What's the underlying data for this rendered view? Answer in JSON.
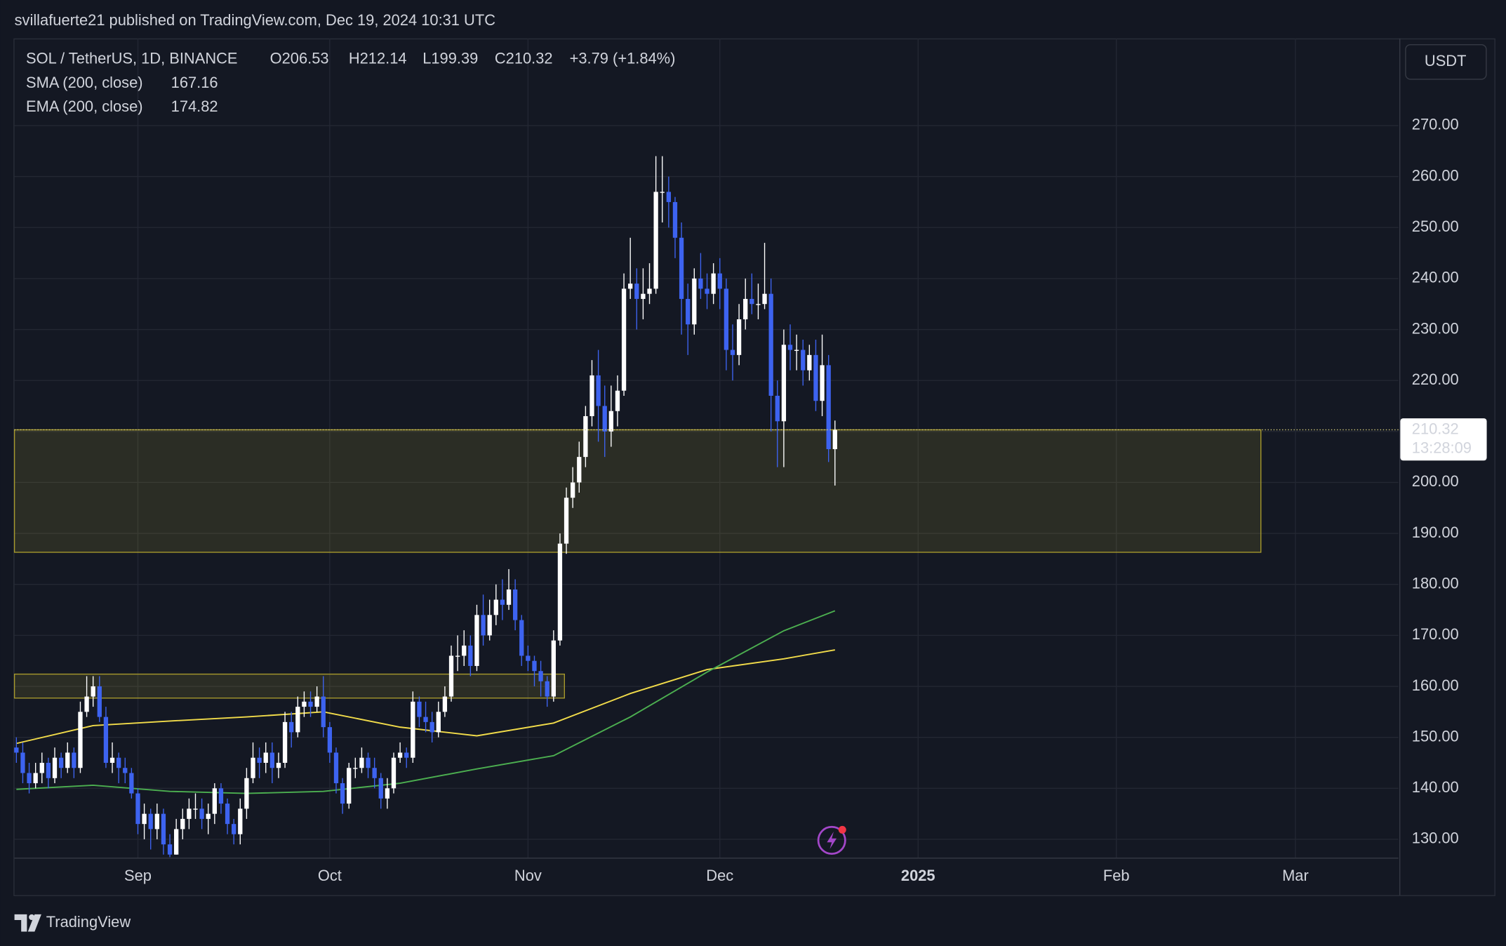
{
  "chart_data": {
    "type": "candlestick",
    "publisher": "svillafuerte21 published on TradingView.com, Dec 19, 2024 10:31 UTC",
    "title": "SOL / TetherUS, 1D, BINANCE",
    "ohlc_labels": [
      "O206.53",
      "H212.14",
      "L199.39",
      "C210.32"
    ],
    "change": "+3.79 (+1.84%)",
    "currency": "USDT",
    "countdown": "13:28:09",
    "brand": "TradingView",
    "up_color": "#ffffff",
    "down_color": "#3d63f0",
    "grid": true,
    "xlim": [
      -0.3,
      216.1
    ],
    "ylim": [
      126.4,
      287.1
    ],
    "xticks": [
      {
        "value": 19,
        "label": "Sep"
      },
      {
        "value": 49,
        "label": "Oct"
      },
      {
        "value": 80,
        "label": "Nov"
      },
      {
        "value": 110,
        "label": "Dec"
      },
      {
        "value": 141,
        "label": "2025"
      },
      {
        "value": 172,
        "label": "Feb"
      },
      {
        "value": 200,
        "label": "Mar"
      }
    ],
    "yticks": [
      {
        "value": 130,
        "label": "130.00"
      },
      {
        "value": 140,
        "label": "140.00"
      },
      {
        "value": 150,
        "label": "150.00"
      },
      {
        "value": 160,
        "label": "160.00"
      },
      {
        "value": 170,
        "label": "170.00"
      },
      {
        "value": 180,
        "label": "180.00"
      },
      {
        "value": 190,
        "label": "190.00"
      },
      {
        "value": 200,
        "label": "200.00"
      },
      {
        "value": 210,
        "label": "210.00"
      },
      {
        "value": 220,
        "label": "220.00"
      },
      {
        "value": 230,
        "label": "230.00"
      },
      {
        "value": 240,
        "label": "240.00"
      },
      {
        "value": 250,
        "label": "250.00"
      },
      {
        "value": 260,
        "label": "260.00"
      },
      {
        "value": 270,
        "label": "270.00"
      }
    ],
    "candles": {
      "x": [
        0,
        1,
        2,
        3,
        4,
        5,
        6,
        7,
        8,
        9,
        10,
        11,
        12,
        13,
        14,
        15,
        16,
        17,
        18,
        19,
        20,
        21,
        22,
        23,
        24,
        25,
        26,
        27,
        28,
        29,
        30,
        31,
        32,
        33,
        34,
        35,
        36,
        37,
        38,
        39,
        40,
        41,
        42,
        43,
        44,
        45,
        46,
        47,
        48,
        49,
        50,
        51,
        52,
        53,
        54,
        55,
        56,
        57,
        58,
        59,
        60,
        61,
        62,
        63,
        64,
        65,
        66,
        67,
        68,
        69,
        70,
        71,
        72,
        73,
        74,
        75,
        76,
        77,
        78,
        79,
        80,
        81,
        82,
        83,
        84,
        85,
        86,
        87,
        88,
        89,
        90,
        91,
        92,
        93,
        94,
        95,
        96,
        97,
        98,
        99,
        100,
        101,
        102,
        103,
        104,
        105,
        106,
        107,
        108,
        109,
        110,
        111,
        112,
        113,
        114,
        115,
        116,
        117,
        118,
        119,
        120,
        121,
        122,
        123,
        124,
        125,
        126,
        127,
        128
      ],
      "open": [
        148,
        147,
        143,
        141,
        143,
        145,
        142,
        146,
        144,
        147,
        144,
        155,
        158,
        160,
        154,
        145,
        146,
        144,
        143,
        139,
        133,
        135,
        132,
        135,
        129,
        127,
        132,
        134,
        136,
        136,
        134,
        135,
        140,
        137,
        133,
        131,
        136,
        142,
        146,
        145,
        147,
        144,
        145,
        153,
        151,
        156,
        157,
        156,
        158,
        152,
        147,
        141,
        137,
        144,
        144,
        146,
        144,
        142,
        138,
        140,
        146,
        147,
        146,
        157,
        154,
        153,
        151,
        155,
        158,
        166,
        166,
        168,
        164,
        174,
        170,
        174,
        177,
        176,
        179,
        173,
        166,
        165,
        163,
        161,
        158,
        169,
        188,
        197,
        200,
        205,
        213,
        221,
        215,
        210,
        214,
        218,
        238,
        239,
        236,
        237,
        238,
        257,
        257,
        255,
        248,
        236,
        231,
        240,
        238,
        237,
        241,
        238,
        226,
        225,
        232,
        236,
        235,
        235,
        237,
        217,
        212,
        227,
        226,
        226,
        222,
        225,
        216,
        223,
        206.53
      ],
      "high": [
        150,
        149,
        145,
        145,
        147,
        146,
        148,
        147,
        149,
        148,
        157,
        162,
        162,
        162,
        156,
        149,
        147,
        146,
        144,
        140,
        137,
        136,
        137,
        136,
        131,
        134,
        136,
        138,
        139,
        138,
        137,
        141,
        141,
        138,
        134,
        138,
        144,
        149,
        148,
        149,
        149,
        147,
        155,
        155,
        158,
        159,
        159,
        160,
        162,
        153,
        148,
        142,
        145,
        146,
        148,
        147,
        146,
        143,
        142,
        147,
        149,
        148,
        159,
        158,
        157,
        155,
        157,
        160,
        168,
        170,
        171,
        170,
        176,
        178,
        177,
        180,
        181,
        183,
        181,
        174,
        168,
        166,
        165,
        162,
        171,
        190,
        199,
        203,
        208,
        215,
        224,
        226,
        219,
        219,
        221,
        241,
        248,
        242,
        242,
        243,
        264,
        264,
        260,
        256,
        251,
        239,
        242,
        245,
        241,
        243,
        244,
        240,
        231,
        235,
        240,
        241,
        239,
        247,
        240,
        220,
        230,
        231,
        229,
        228,
        227,
        228,
        229,
        225,
        212.14
      ],
      "low": [
        145,
        141,
        139,
        140,
        141,
        140,
        141,
        142,
        143,
        142,
        143,
        154,
        156,
        153,
        144,
        143,
        141,
        141,
        138,
        131,
        130,
        128,
        130,
        127,
        126.5,
        127,
        130,
        132,
        134,
        132,
        131,
        133,
        135,
        131,
        129,
        129,
        134,
        141,
        142,
        143,
        141,
        142,
        144,
        148,
        150,
        154,
        154,
        155,
        150,
        145,
        139,
        135,
        136,
        142,
        143,
        142,
        140,
        136,
        136,
        139,
        145,
        144,
        145,
        152,
        151,
        149,
        150,
        154,
        157,
        163,
        164,
        162,
        163,
        168,
        169,
        172,
        173,
        175,
        171,
        164,
        163,
        160,
        158,
        156,
        157,
        168,
        186,
        195,
        198,
        203,
        211,
        208,
        205,
        207,
        211,
        217,
        236,
        230,
        232,
        235,
        237,
        251,
        250,
        244,
        229,
        225,
        229,
        236,
        234,
        235,
        234,
        222,
        220,
        223,
        230,
        233,
        232,
        234,
        210,
        203,
        203,
        222,
        222,
        219,
        220,
        214,
        213,
        204,
        199.39
      ],
      "close": [
        147,
        143,
        141,
        143,
        145,
        142,
        146,
        144,
        147,
        144,
        155,
        158,
        160,
        154,
        145,
        146,
        144,
        143,
        139,
        133,
        135,
        132,
        135,
        129,
        127,
        132,
        134,
        136,
        136,
        134,
        135,
        140,
        137,
        133,
        131,
        136,
        142,
        146,
        145,
        147,
        144,
        145,
        153,
        151,
        156,
        157,
        156,
        158,
        152,
        147,
        141,
        137,
        144,
        144,
        146,
        144,
        142,
        138,
        140,
        146,
        147,
        146,
        157,
        154,
        153,
        151,
        155,
        158,
        166,
        166,
        168,
        164,
        174,
        170,
        174,
        177,
        176,
        179,
        173,
        166,
        165,
        163,
        161,
        158,
        169,
        188,
        197,
        200,
        205,
        213,
        221,
        215,
        210,
        214,
        218,
        238,
        239,
        236,
        237,
        238,
        257,
        257,
        255,
        248,
        236,
        231,
        240,
        238,
        237,
        241,
        238,
        226,
        225,
        232,
        236,
        235,
        235,
        237,
        217,
        212,
        227,
        226,
        226,
        222,
        225,
        216,
        223,
        206.53,
        210.32
      ]
    },
    "indicators": [
      {
        "name": "SMA (200, close)",
        "color": "#f2dc4a",
        "x": [
          0,
          12,
          24,
          36,
          48,
          60,
          72,
          84,
          96,
          108,
          120,
          128
        ],
        "values": [
          148.8,
          152.3,
          153.2,
          154,
          155,
          152,
          150.3,
          152.8,
          158.6,
          163.3,
          165.4,
          167.16
        ]
      },
      {
        "name": "EMA (200, close)",
        "color": "#4caf50",
        "x": [
          0,
          12,
          24,
          36,
          48,
          60,
          72,
          84,
          96,
          108,
          120,
          128
        ],
        "values": [
          139.8,
          140.6,
          139.4,
          139,
          139.4,
          141,
          143.8,
          146.4,
          154,
          162.8,
          170.9,
          174.82
        ]
      }
    ],
    "zones": [
      {
        "x": [
          -0.3,
          194.6
        ],
        "y": [
          186.3,
          210.32
        ]
      },
      {
        "x": [
          -0.3,
          85.7
        ],
        "y": [
          157.7,
          162.4
        ]
      }
    ]
  }
}
